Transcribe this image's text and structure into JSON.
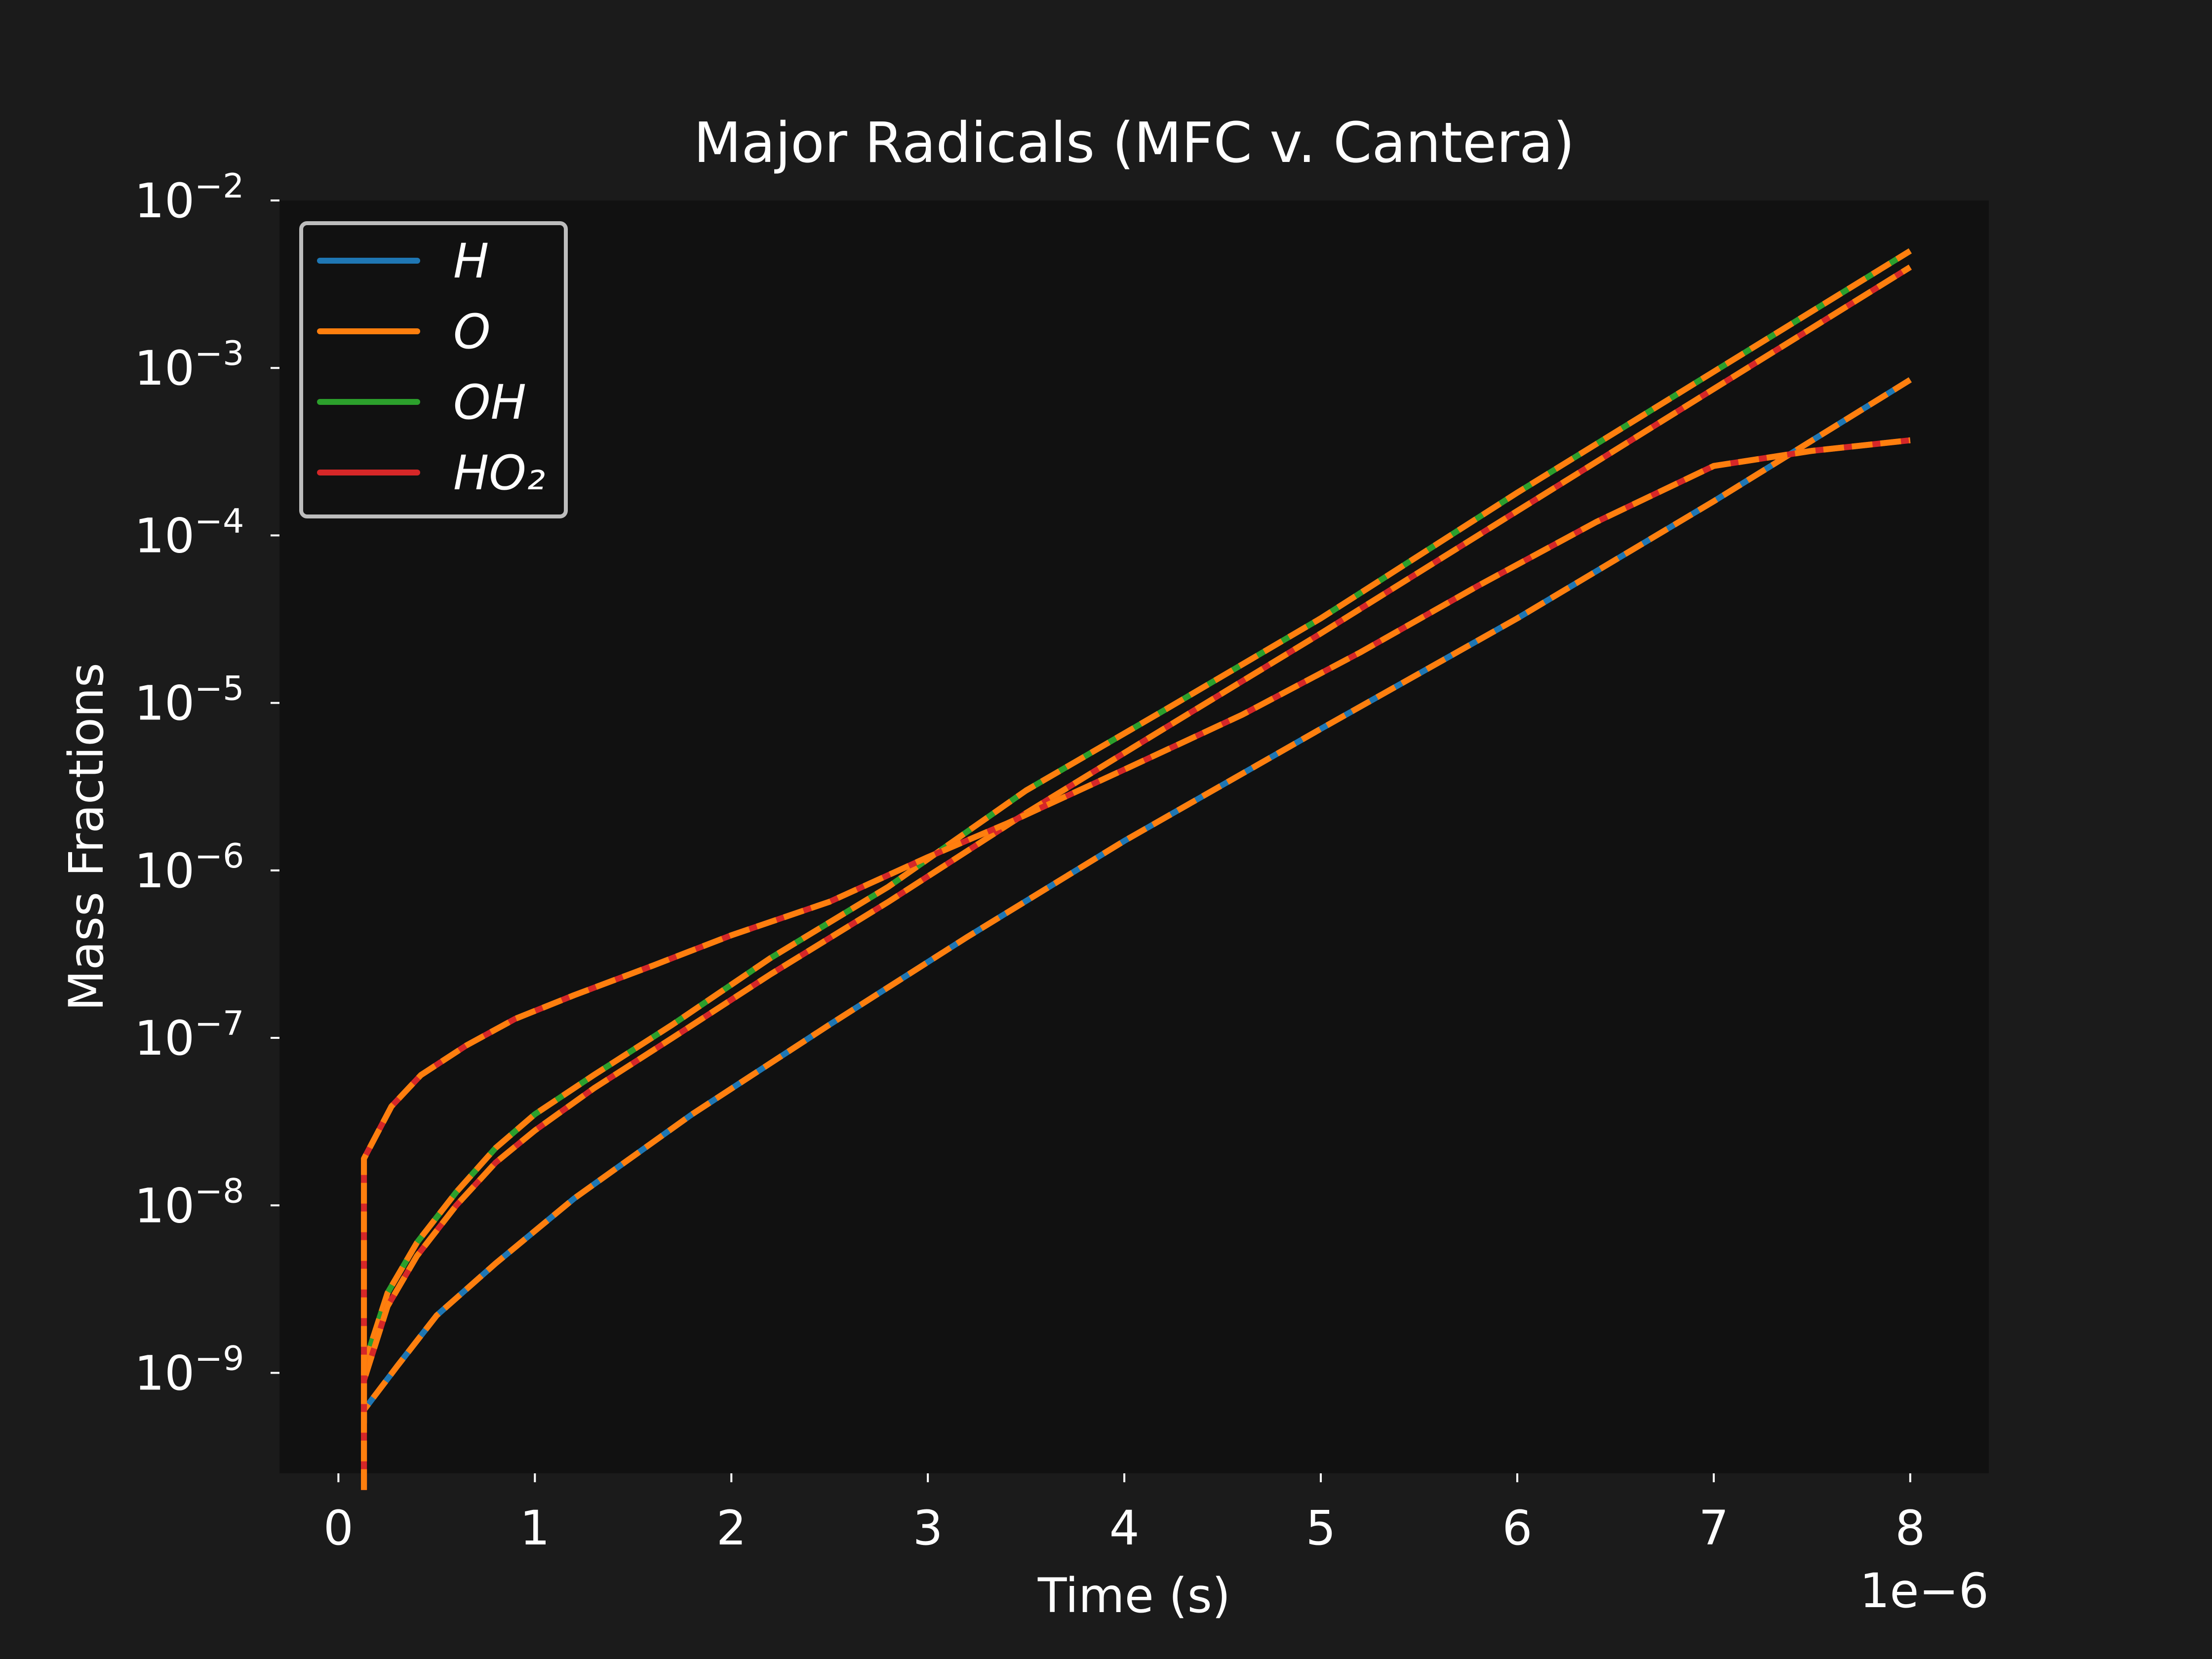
{
  "chart_data": {
    "type": "line",
    "title": "Major Radicals (MFC v. Cantera)",
    "xlabel": "Time (s)",
    "ylabel": "Mass Fractions",
    "x_offset_label": "1e−6",
    "x_scale_factor": 1e-06,
    "xlim": [
      -0.3,
      8.4
    ],
    "x_ticks": [
      0,
      1,
      2,
      3,
      4,
      5,
      6,
      7,
      8
    ],
    "x_tick_labels": [
      "0",
      "1",
      "2",
      "3",
      "4",
      "5",
      "6",
      "7",
      "8"
    ],
    "yscale": "log",
    "ylim_exponent": [
      -9.6,
      -2
    ],
    "y_ticks_exponent": [
      -9,
      -8,
      -7,
      -6,
      -5,
      -4,
      -3,
      -2
    ],
    "y_tick_base": "10",
    "y_tick_exponent_labels": [
      "−9",
      "−8",
      "−7",
      "−6",
      "−5",
      "−4",
      "−3",
      "−2"
    ],
    "grid": false,
    "legend_position": "top-left",
    "series": [
      {
        "name": "H",
        "color": "#1f77b4",
        "x": [
          0.13,
          0.13,
          0.3,
          0.5,
          0.8,
          1.2,
          1.8,
          2.5,
          3.2,
          4.0,
          5.0,
          6.0,
          7.0,
          8.0
        ],
        "y": [
          5e-10,
          6e-10,
          1.1e-09,
          2.2e-09,
          4.5e-09,
          1.1e-08,
          3.5e-08,
          1.2e-07,
          4e-07,
          1.5e-06,
          7e-06,
          3.2e-05,
          0.00016,
          0.00085
        ]
      },
      {
        "name": "O",
        "color": "#ff7f0e",
        "x": [],
        "y": []
      },
      {
        "name": "OH",
        "color": "#2ca02c",
        "x": [
          0.13,
          0.13,
          0.25,
          0.4,
          0.6,
          0.8,
          1.0,
          1.3,
          1.7,
          2.2,
          2.8,
          3.5,
          4.2,
          5.0,
          6.0,
          7.0,
          8.0
        ],
        "y": [
          5e-10,
          1.1e-09,
          3e-09,
          6e-09,
          1.2e-08,
          2.2e-08,
          3.5e-08,
          6e-08,
          1.2e-07,
          3e-07,
          8e-07,
          3e-06,
          9e-06,
          3.2e-05,
          0.00018,
          0.00095,
          0.005
        ]
      },
      {
        "name": "HO₂",
        "color": "#d62728",
        "x": [
          0.13,
          0.13,
          0.25,
          0.4,
          0.6,
          0.8,
          1.0,
          1.3,
          1.7,
          2.2,
          2.8,
          3.5,
          4.2,
          5.0,
          6.0,
          7.0,
          8.0
        ],
        "y": [
          2e-10,
          9e-10,
          2.5e-09,
          5e-09,
          1e-08,
          1.8e-08,
          2.8e-08,
          5e-08,
          1e-07,
          2.4e-07,
          6.5e-07,
          2.2e-06,
          7e-06,
          2.6e-05,
          0.00014,
          0.00075,
          0.004
        ]
      },
      {
        "name": "",
        "color": "#d62728",
        "x": [
          0.13,
          0.13,
          0.27,
          0.42,
          0.65,
          0.9,
          1.2,
          1.6,
          2.0,
          2.5,
          3.0,
          3.4,
          4.0,
          4.6,
          5.2,
          5.8,
          6.4,
          7.0,
          7.5,
          8.0
        ],
        "y": [
          2e-10,
          1.9e-08,
          3.9e-08,
          6e-08,
          9e-08,
          1.3e-07,
          1.8e-07,
          2.7e-07,
          4.1e-07,
          6.5e-07,
          1.2e-06,
          1.9e-06,
          4e-06,
          8.5e-06,
          2e-05,
          5e-05,
          0.00012,
          0.00026,
          0.00032,
          0.00037
        ]
      }
    ]
  }
}
